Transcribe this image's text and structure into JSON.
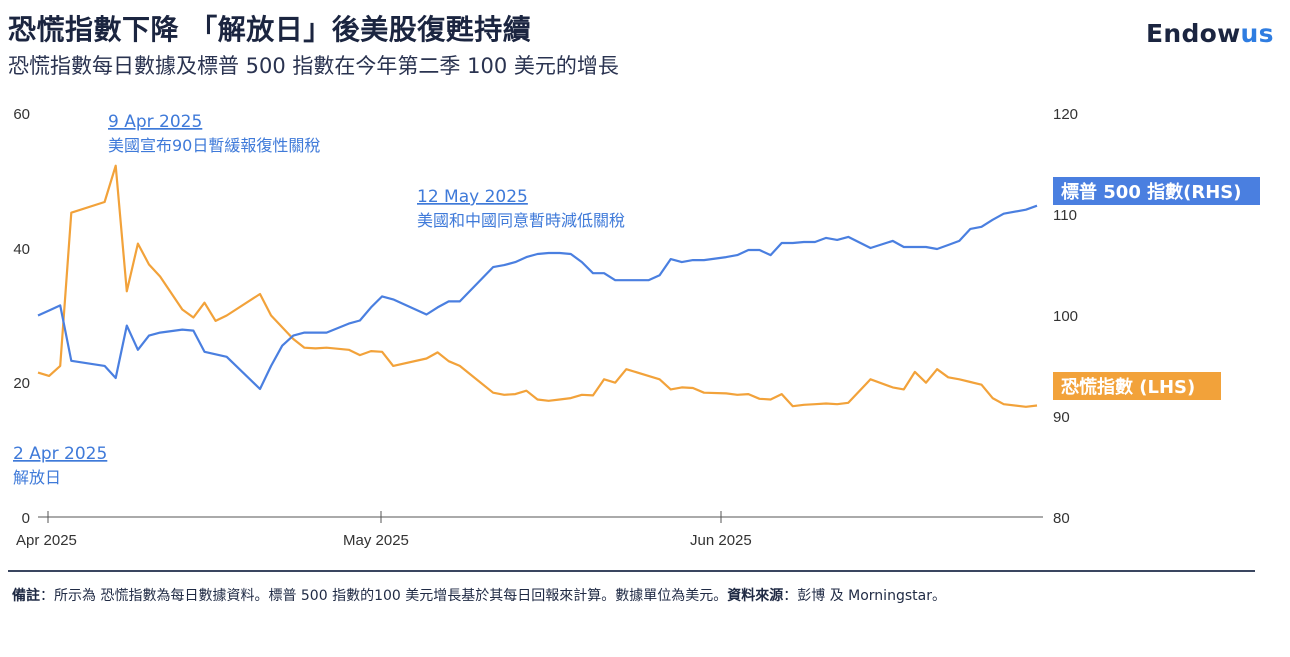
{
  "header": {
    "title": "恐慌指數下降 「解放日」後美股復甦持續",
    "subtitle": "恐慌指數每日數據及標普 500 指數在今年第二季 100 美元的增長",
    "brand_main": "Endow",
    "brand_accent": "us"
  },
  "colors": {
    "sp500": "#4a7fe0",
    "fear": "#f2a23a",
    "annotation": "#3f7ad9",
    "axis": "#333333"
  },
  "chart_data": {
    "type": "line",
    "x_ticks": [
      "Apr 2025",
      "May 2025",
      "Jun 2025"
    ],
    "y_left": {
      "ticks": [
        "0",
        "20",
        "40",
        "60"
      ],
      "range": [
        0,
        60
      ]
    },
    "y_right": {
      "ticks": [
        "80",
        "90",
        "100",
        "110",
        "120"
      ],
      "range": [
        80,
        120
      ]
    },
    "series": [
      {
        "name": "標普 500 指數(RHS)",
        "axis": "right",
        "color": "#4a7fe0",
        "x": [
          0,
          1,
          2,
          3,
          6,
          7,
          8,
          9,
          10,
          11,
          13,
          14,
          15,
          17,
          20,
          21,
          22,
          23,
          24,
          25,
          26,
          28,
          29,
          30,
          31,
          32,
          35,
          36,
          37,
          38,
          41,
          42,
          43,
          44,
          45,
          46,
          47,
          48,
          49,
          50,
          51,
          52,
          53,
          55,
          56,
          57,
          58,
          59,
          60,
          62,
          63,
          64,
          65,
          66,
          67,
          68,
          69,
          70,
          71,
          72,
          73,
          75,
          77,
          78,
          79,
          80,
          81,
          82,
          83,
          84,
          85,
          86,
          87,
          89,
          90
        ],
        "values": [
          100.0,
          100.5,
          101.0,
          95.5,
          95.0,
          93.8,
          99.0,
          96.6,
          98.0,
          98.3,
          98.6,
          98.5,
          96.4,
          95.9,
          92.7,
          95.0,
          97.0,
          98.0,
          98.3,
          98.3,
          98.3,
          99.2,
          99.5,
          100.8,
          101.9,
          101.6,
          100.1,
          100.8,
          101.4,
          101.4,
          104.8,
          105.0,
          105.3,
          105.8,
          106.1,
          106.2,
          106.2,
          106.1,
          105.3,
          104.2,
          104.2,
          103.5,
          103.5,
          103.5,
          104.0,
          105.6,
          105.3,
          105.5,
          105.5,
          105.8,
          106.0,
          106.5,
          106.5,
          106.0,
          107.2,
          107.2,
          107.3,
          107.3,
          107.7,
          107.5,
          107.8,
          106.7,
          107.4,
          106.8,
          106.8,
          106.8,
          106.6,
          107.0,
          107.4,
          108.6,
          108.8,
          109.5,
          110.1,
          110.5,
          110.9
        ]
      },
      {
        "name": "恐慌指數 (LHS)",
        "axis": "left",
        "color": "#f2a23a",
        "x": [
          0,
          1,
          2,
          3,
          6,
          7,
          8,
          9,
          10,
          11,
          13,
          14,
          15,
          16,
          17,
          20,
          21,
          23,
          24,
          25,
          26,
          28,
          29,
          30,
          31,
          32,
          35,
          36,
          37,
          38,
          41,
          42,
          43,
          44,
          45,
          46,
          47,
          48,
          49,
          50,
          51,
          52,
          53,
          55,
          56,
          57,
          58,
          59,
          60,
          62,
          63,
          64,
          65,
          66,
          67,
          68,
          69,
          70,
          71,
          72,
          73,
          75,
          77,
          78,
          79,
          80,
          81,
          82,
          83,
          84,
          85,
          86,
          87,
          89,
          90
        ],
        "values": [
          21.5,
          21.0,
          22.5,
          45.3,
          46.9,
          52.3,
          33.6,
          40.7,
          37.6,
          35.8,
          30.9,
          29.7,
          31.9,
          29.2,
          30.0,
          33.2,
          30.0,
          26.5,
          25.2,
          25.1,
          25.2,
          24.9,
          24.1,
          24.7,
          24.6,
          22.5,
          23.6,
          24.5,
          23.2,
          22.5,
          18.5,
          18.2,
          18.3,
          18.8,
          17.5,
          17.3,
          17.5,
          17.7,
          18.2,
          18.1,
          20.5,
          20.0,
          22.0,
          21.0,
          20.5,
          19.0,
          19.3,
          19.2,
          18.5,
          18.4,
          18.2,
          18.3,
          17.6,
          17.5,
          18.3,
          16.5,
          16.7,
          16.8,
          16.9,
          16.8,
          17.0,
          20.5,
          19.3,
          19.0,
          21.6,
          20.0,
          22.0,
          20.8,
          20.5,
          20.1,
          19.7,
          17.7,
          16.8,
          16.4,
          16.6
        ]
      }
    ],
    "annotations": [
      {
        "date": "9 Apr 2025",
        "text": "美國宣布90日暫緩報復性關稅"
      },
      {
        "date": "12 May 2025",
        "text": "美國和中國同意暫時減低關稅"
      },
      {
        "date": "2 Apr 2025",
        "text": "解放日"
      }
    ]
  },
  "footer": {
    "note_label": "備註",
    "note_text": "：所示為 恐慌指數為每日數據資料。標普 500 指數的100 美元增長基於其每日回報來計算。數據單位為美元。",
    "source_label": "資料來源",
    "source_text": "：彭博 及 Morningstar。"
  }
}
